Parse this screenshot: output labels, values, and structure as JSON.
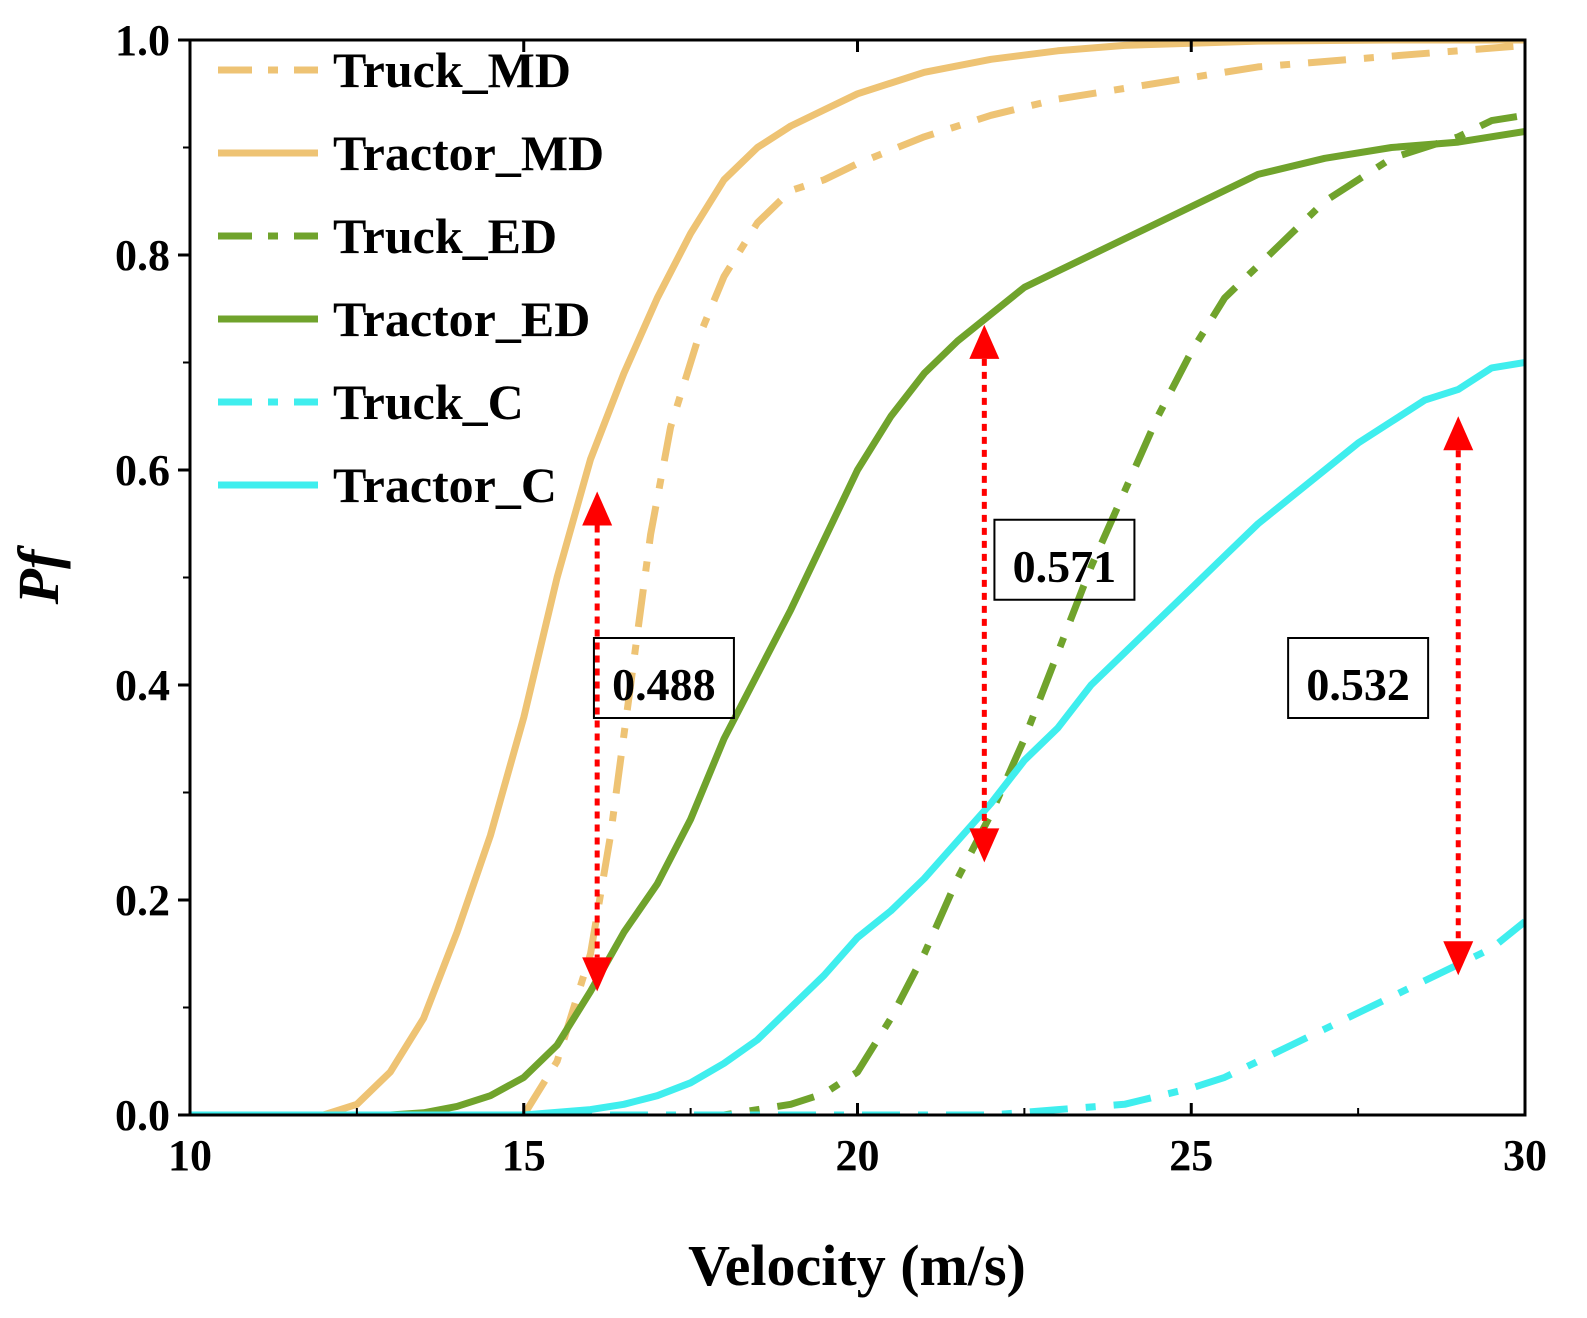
{
  "chart_data": {
    "type": "line",
    "title": "",
    "xlabel": "Velocity (m/s)",
    "ylabel": "Pf",
    "xlim": [
      10,
      30
    ],
    "ylim": [
      0,
      1.0
    ],
    "xticks": [
      10,
      15,
      20,
      25,
      30
    ],
    "yticks": [
      0.0,
      0.2,
      0.4,
      0.6,
      0.8,
      1.0
    ],
    "xtick_labels": [
      "10",
      "15",
      "20",
      "25",
      "30"
    ],
    "ytick_labels": [
      "0.0",
      "0.2",
      "0.4",
      "0.6",
      "0.8",
      "1.0"
    ],
    "grid": false,
    "legend_position": "top-left",
    "series": [
      {
        "name": "Truck_MD",
        "style": "dashdot",
        "color": "#EEC374",
        "x": [
          10,
          15,
          15.5,
          16,
          16.3,
          16.6,
          16.9,
          17.2,
          17.6,
          18,
          18.5,
          19,
          19.5,
          20,
          21,
          22,
          23,
          24,
          25,
          26,
          27,
          28,
          29,
          30
        ],
        "y": [
          0,
          0,
          0.05,
          0.15,
          0.26,
          0.4,
          0.54,
          0.64,
          0.72,
          0.78,
          0.83,
          0.86,
          0.87,
          0.885,
          0.91,
          0.93,
          0.945,
          0.955,
          0.965,
          0.975,
          0.98,
          0.985,
          0.99,
          0.995
        ]
      },
      {
        "name": "Tractor_MD",
        "style": "solid",
        "color": "#EEC374",
        "x": [
          10,
          12,
          12.5,
          13,
          13.5,
          14,
          14.5,
          15,
          15.5,
          16,
          16.5,
          17,
          17.5,
          18,
          18.5,
          19,
          19.5,
          20,
          21,
          22,
          23,
          24,
          25,
          26,
          28,
          30
        ],
        "y": [
          0,
          0,
          0.01,
          0.04,
          0.09,
          0.17,
          0.26,
          0.37,
          0.5,
          0.61,
          0.69,
          0.76,
          0.82,
          0.87,
          0.9,
          0.92,
          0.935,
          0.95,
          0.97,
          0.982,
          0.99,
          0.995,
          0.997,
          0.999,
          1.0,
          1.0
        ]
      },
      {
        "name": "Truck_ED",
        "style": "dashdot",
        "color": "#70A32C",
        "x": [
          10,
          18,
          19,
          19.5,
          20,
          20.5,
          21,
          21.5,
          22,
          22.5,
          23,
          23.5,
          24,
          24.5,
          25,
          25.5,
          26,
          26.5,
          27,
          27.5,
          28,
          29,
          29.5,
          30
        ],
        "y": [
          0,
          0,
          0.01,
          0.02,
          0.04,
          0.09,
          0.15,
          0.22,
          0.28,
          0.35,
          0.43,
          0.51,
          0.58,
          0.65,
          0.71,
          0.76,
          0.79,
          0.82,
          0.85,
          0.87,
          0.89,
          0.91,
          0.925,
          0.93
        ]
      },
      {
        "name": "Tractor_ED",
        "style": "solid",
        "color": "#70A32C",
        "x": [
          10,
          13,
          13.5,
          14,
          14.5,
          15,
          15.5,
          16,
          16.5,
          17,
          17.5,
          18,
          18.5,
          19,
          19.5,
          20,
          20.5,
          21,
          21.5,
          22,
          22.5,
          23,
          24,
          25,
          26,
          27,
          28,
          29,
          30
        ],
        "y": [
          0,
          0,
          0.002,
          0.008,
          0.018,
          0.035,
          0.065,
          0.115,
          0.17,
          0.215,
          0.275,
          0.35,
          0.41,
          0.47,
          0.535,
          0.6,
          0.65,
          0.69,
          0.72,
          0.745,
          0.77,
          0.785,
          0.815,
          0.845,
          0.875,
          0.89,
          0.9,
          0.905,
          0.915
        ]
      },
      {
        "name": "Truck_C",
        "style": "dashdot",
        "color": "#3FEEEE",
        "x": [
          10,
          22,
          23,
          24,
          25,
          25.5,
          26,
          26.5,
          27,
          27.5,
          28,
          28.5,
          29,
          29.5,
          30
        ],
        "y": [
          0,
          0,
          0.005,
          0.01,
          0.025,
          0.035,
          0.05,
          0.065,
          0.08,
          0.095,
          0.11,
          0.125,
          0.14,
          0.155,
          0.18
        ]
      },
      {
        "name": "Tractor_C",
        "style": "solid",
        "color": "#3FEEEE",
        "x": [
          10,
          15,
          16,
          16.5,
          17,
          17.5,
          18,
          18.5,
          19,
          19.5,
          20,
          20.5,
          21,
          21.5,
          22,
          22.5,
          23,
          23.5,
          24,
          24.5,
          25,
          25.5,
          26,
          26.5,
          27,
          27.5,
          28,
          28.5,
          29,
          29.5,
          30
        ],
        "y": [
          0,
          0,
          0.005,
          0.01,
          0.018,
          0.03,
          0.048,
          0.07,
          0.1,
          0.13,
          0.165,
          0.19,
          0.22,
          0.255,
          0.29,
          0.33,
          0.36,
          0.4,
          0.43,
          0.46,
          0.49,
          0.52,
          0.55,
          0.575,
          0.6,
          0.625,
          0.645,
          0.665,
          0.675,
          0.695,
          0.7
        ]
      }
    ],
    "annotations": [
      {
        "label": "0.488",
        "x": 16.1,
        "y_top": 0.58,
        "y_bottom": 0.115,
        "box_x": 17.1,
        "box_y": 0.4,
        "color": "#FF0000"
      },
      {
        "label": "0.571",
        "x": 21.9,
        "y_top": 0.735,
        "y_bottom": 0.235,
        "box_x": 23.1,
        "box_y": 0.51,
        "color": "#FF0000"
      },
      {
        "label": "0.532",
        "x": 29.0,
        "y_top": 0.65,
        "y_bottom": 0.13,
        "box_x": 27.5,
        "box_y": 0.4,
        "color": "#FF0000"
      }
    ]
  }
}
